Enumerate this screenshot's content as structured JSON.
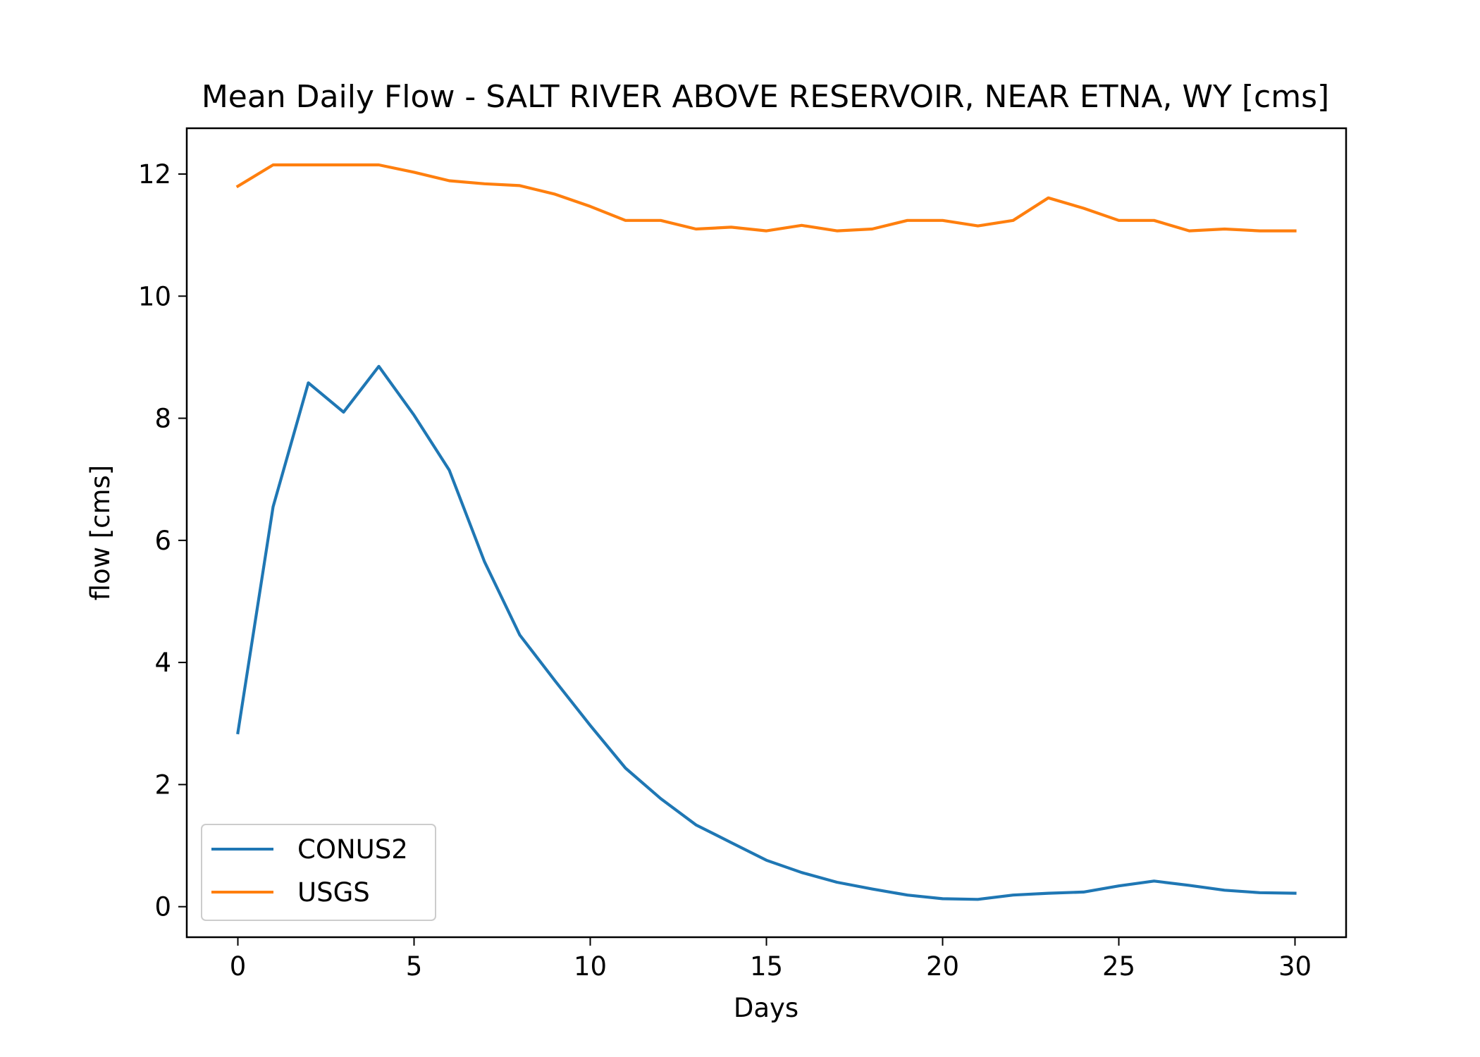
{
  "chart_data": {
    "type": "line",
    "title": "Mean Daily Flow - SALT RIVER ABOVE RESERVOIR, NEAR ETNA, WY [cms]",
    "xlabel": "Days",
    "ylabel": "flow [cms]",
    "xlim": [
      -1.45,
      31.45
    ],
    "ylim": [
      -0.5,
      12.75
    ],
    "xticks": [
      0,
      5,
      10,
      15,
      20,
      25,
      30
    ],
    "yticks": [
      0,
      2,
      4,
      6,
      8,
      10,
      12
    ],
    "grid": false,
    "legend": "lower-left",
    "x": [
      0,
      1,
      2,
      3,
      4,
      5,
      6,
      7,
      8,
      9,
      10,
      11,
      12,
      13,
      14,
      15,
      16,
      17,
      18,
      19,
      20,
      21,
      22,
      23,
      24,
      25,
      26,
      27,
      28,
      29,
      30
    ],
    "series": [
      {
        "name": "CONUS2",
        "color": "#1f77b4",
        "values": [
          2.85,
          6.55,
          8.58,
          8.1,
          8.85,
          8.05,
          7.15,
          5.65,
          4.45,
          3.7,
          2.97,
          2.27,
          1.77,
          1.34,
          1.05,
          0.76,
          0.56,
          0.4,
          0.29,
          0.19,
          0.13,
          0.12,
          0.19,
          0.22,
          0.24,
          0.34,
          0.42,
          0.35,
          0.27,
          0.23,
          0.22
        ]
      },
      {
        "name": "USGS",
        "color": "#ff7f0e",
        "values": [
          11.8,
          12.15,
          12.15,
          12.15,
          12.15,
          12.03,
          11.89,
          11.84,
          11.81,
          11.67,
          11.47,
          11.24,
          11.24,
          11.1,
          11.13,
          11.07,
          11.16,
          11.07,
          11.1,
          11.24,
          11.24,
          11.15,
          11.24,
          11.61,
          11.44,
          11.24,
          11.24,
          11.07,
          11.1,
          11.07,
          11.07
        ]
      }
    ]
  }
}
